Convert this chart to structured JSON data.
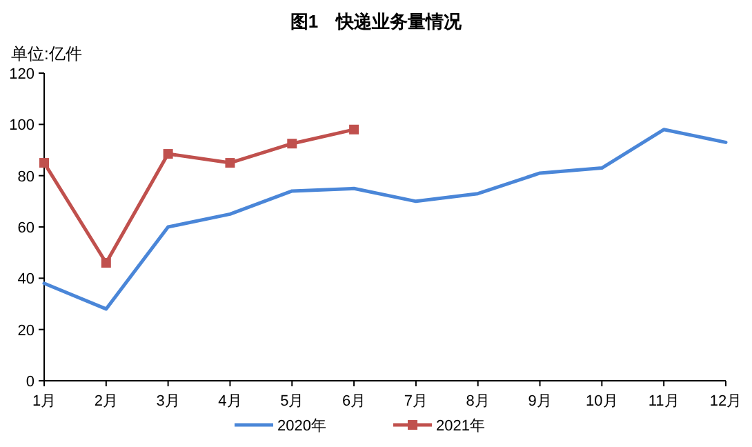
{
  "chart_data": {
    "type": "line",
    "title": "图1　快递业务量情况",
    "ylabel": "单位:亿件",
    "categories": [
      "1月",
      "2月",
      "3月",
      "4月",
      "5月",
      "6月",
      "7月",
      "8月",
      "9月",
      "10月",
      "11月",
      "12月"
    ],
    "series": [
      {
        "name": "2020年",
        "color": "#4a86d8",
        "marker": "none",
        "values": [
          38,
          28,
          60,
          65,
          74,
          75,
          70,
          73,
          81,
          83,
          98,
          93
        ]
      },
      {
        "name": "2021年",
        "color": "#c0504d",
        "marker": "square",
        "values": [
          85,
          46,
          88.5,
          85,
          92.5,
          98,
          null,
          null,
          null,
          null,
          null,
          null
        ]
      }
    ],
    "ylim": [
      0,
      120
    ],
    "yticks": [
      0,
      20,
      40,
      60,
      80,
      100,
      120
    ],
    "legend": "bottom"
  }
}
